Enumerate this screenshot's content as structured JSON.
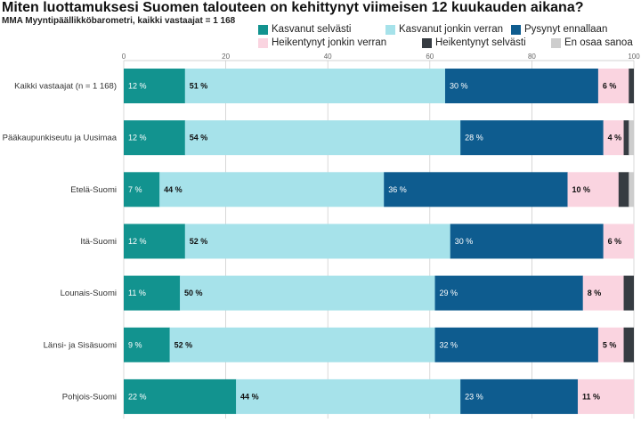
{
  "title": "Miten luottamuksesi Suomen talouteen on kehittynyt viimeisen 12 kuukauden aikana?",
  "subtitle": "MMA Myyntipäällikköbarometri, kaikki vastaajat = 1 168",
  "chart_data": {
    "type": "bar",
    "orientation": "horizontal",
    "stacked": true,
    "unit": "%",
    "xlim": [
      0,
      100
    ],
    "xticks": [
      0,
      20,
      40,
      60,
      80,
      100
    ],
    "grid": true,
    "legend": "top-right",
    "categories": [
      "Kaikki vastaajat (n = 1 168)",
      "Pääkaupunkiseutu ja Uusimaa",
      "Etelä-Suomi",
      "Itä-Suomi",
      "Lounais-Suomi",
      "Länsi- ja Sisäsuomi",
      "Pohjois-Suomi"
    ],
    "series": [
      {
        "name": "Kasvanut selvästi",
        "color": "#12938f",
        "label_color": "#ffffff",
        "show_labels": true,
        "values": [
          12,
          12,
          7,
          12,
          11,
          9,
          22
        ]
      },
      {
        "name": "Kasvanut jonkin verran",
        "color": "#a6e2ea",
        "label_color": "#111111",
        "show_labels": true,
        "values": [
          51,
          54,
          44,
          52,
          50,
          52,
          44
        ]
      },
      {
        "name": "Pysynyt ennallaan",
        "color": "#0e5c8f",
        "label_color": "#ffffff",
        "show_labels": true,
        "values": [
          30,
          28,
          36,
          30,
          29,
          32,
          23
        ]
      },
      {
        "name": "Heikentynyt jonkin verran",
        "color": "#fad4e0",
        "label_color": "#111111",
        "show_labels": true,
        "values": [
          6,
          4,
          10,
          6,
          8,
          5,
          11
        ]
      },
      {
        "name": "Heikentynyt selvästi",
        "color": "#363c42",
        "show_labels": false,
        "values": [
          1,
          1,
          2,
          0,
          2,
          2,
          0
        ]
      },
      {
        "name": "En osaa sanoa",
        "color": "#cdcdcd",
        "show_labels": false,
        "values": [
          0,
          1,
          1,
          0,
          0,
          0,
          0
        ]
      }
    ]
  }
}
